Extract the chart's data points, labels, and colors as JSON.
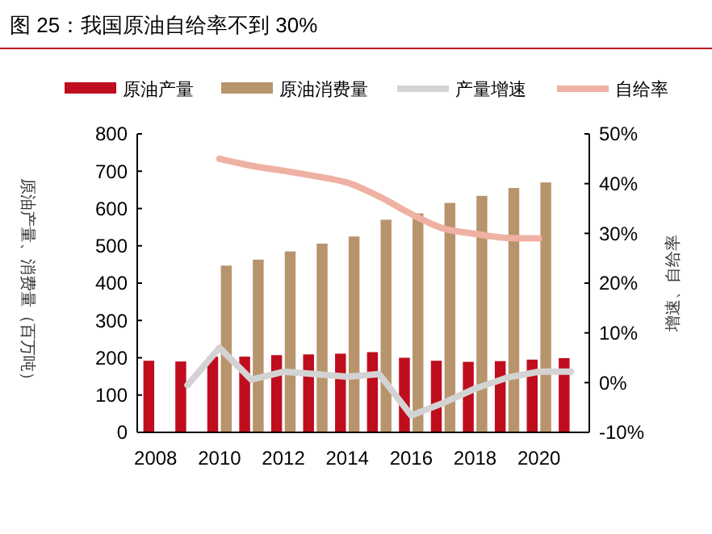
{
  "chart_data": {
    "type": "bar",
    "title": "图 25：我国原油自给率不到 30%",
    "ylabel": "原油产量、消费量（百万吨）",
    "y2label": "增速、自给率",
    "categories": [
      "2008",
      null,
      "2010",
      null,
      "2012",
      null,
      "2014",
      null,
      "2016",
      null,
      "2018",
      null,
      "2020",
      null
    ],
    "series": [
      {
        "name": "原油产量",
        "color": "#c00d1e",
        "values": [
          192,
          190,
          203,
          203,
          207,
          209,
          211,
          215,
          200,
          192,
          189,
          191,
          195,
          199
        ]
      },
      {
        "name": "原油消费量",
        "color": "#b8946c",
        "values": [
          null,
          null,
          447,
          463,
          485,
          506,
          525,
          570,
          587,
          615,
          634,
          655,
          670,
          null
        ]
      },
      {
        "name": "产量增速",
        "type": "line",
        "axis": "y2",
        "color": "#d3d3d3",
        "values": [
          null,
          -0.5,
          7,
          0.6,
          2.2,
          1.7,
          1.2,
          1.7,
          -6.6,
          -4.1,
          -1.2,
          1,
          2.2,
          2.2
        ]
      },
      {
        "name": "自给率",
        "type": "line",
        "axis": "y2",
        "color": "#efb1a3",
        "values": [
          null,
          null,
          45,
          43.6,
          42.6,
          41.5,
          40.2,
          37.4,
          33.9,
          31,
          29.9,
          29.1,
          29,
          null
        ]
      }
    ],
    "ylim": [
      0,
      800
    ],
    "yticks": [
      0,
      100,
      200,
      300,
      400,
      500,
      600,
      700,
      800
    ],
    "y2lim": [
      -10,
      50
    ],
    "y2ticks": [
      {
        "value": -10,
        "label": "-10%"
      },
      {
        "value": 0,
        "label": "0%"
      },
      {
        "value": 10,
        "label": "10%"
      },
      {
        "value": 20,
        "label": "20%"
      },
      {
        "value": 30,
        "label": "30%"
      },
      {
        "value": 40,
        "label": "40%"
      },
      {
        "value": 50,
        "label": "50%"
      }
    ],
    "legend": "top",
    "grid": false
  }
}
